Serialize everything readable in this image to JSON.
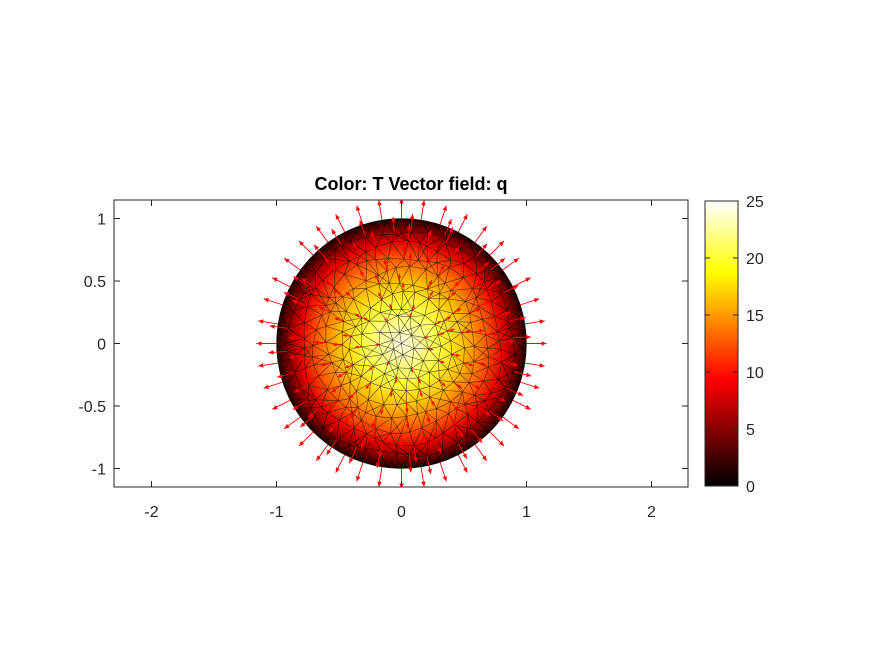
{
  "chart_data": {
    "type": "heatmap",
    "title": "Color: T  Vector field: q",
    "xlabel": "",
    "ylabel": "",
    "xlim": [
      -2.3,
      2.3
    ],
    "ylim": [
      -1.15,
      1.15
    ],
    "xticks": [
      -2,
      -1,
      0,
      1,
      2
    ],
    "xtick_labels": [
      "-2",
      "-1",
      "0",
      "1",
      "2"
    ],
    "yticks": [
      -1,
      -0.5,
      0,
      0.5,
      1
    ],
    "ytick_labels": [
      "-1",
      "-0.5",
      "0",
      "0.5",
      "1"
    ],
    "domain": {
      "shape": "disk",
      "center": [
        0,
        0
      ],
      "radius": 1
    },
    "color_field": "T",
    "vector_field": "q",
    "field_model": {
      "T_center": 25,
      "T_boundary": 0,
      "profile": "T = 25*(1 - r^2)"
    },
    "colormap": "hot",
    "colorbar": {
      "limits": [
        0,
        25
      ],
      "ticks": [
        0,
        5,
        10,
        15,
        20,
        25
      ],
      "tick_labels": [
        "0",
        "5",
        "10",
        "15",
        "20",
        "25"
      ]
    },
    "arrow_color": "#ff0000",
    "mesh_color": "#000000",
    "grid": false,
    "legend": "none"
  }
}
